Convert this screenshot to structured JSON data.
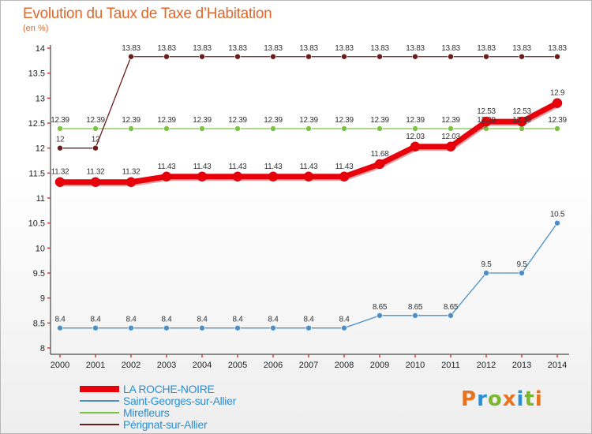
{
  "header": {
    "title": "Evolution du Taux de Taxe d’Habitation",
    "unit": "(en %)"
  },
  "logo": {
    "text": "Proxiti",
    "letter_colors": [
      "#e8731e",
      "#2b8fd4",
      "#7cb82f",
      "#e8731e",
      "#2b8fd4",
      "#7cb82f",
      "#e8731e"
    ]
  },
  "chart_data": {
    "type": "line",
    "x": [
      "2000",
      "2001",
      "2002",
      "2003",
      "2004",
      "2005",
      "2006",
      "2007",
      "2008",
      "2009",
      "2010",
      "2011",
      "2012",
      "2013",
      "2014"
    ],
    "ylim": [
      8,
      14
    ],
    "yticks": [
      "8",
      "8.5",
      "9",
      "9.5",
      "10",
      "10.5",
      "11",
      "11.5",
      "12",
      "12.5",
      "13",
      "13.5",
      "14"
    ],
    "grid": false,
    "legend_position": "bottom-left",
    "series": [
      {
        "name": "LA ROCHE-NOIRE",
        "color": "#e8000b",
        "values": [
          11.32,
          11.32,
          11.32,
          11.43,
          11.43,
          11.43,
          11.43,
          11.43,
          11.43,
          11.68,
          12.03,
          12.03,
          12.53,
          12.53,
          12.9
        ],
        "labels": [
          "11.32",
          "11.32",
          "11.32",
          "11.43",
          "11.43",
          "11.43",
          "11.43",
          "11.43",
          "11.43",
          "11.68",
          "12.03",
          "12.03",
          "12.53",
          "12.53",
          "12.9"
        ]
      },
      {
        "name": "Saint-Georges-sur-Allier",
        "color": "#4a8fc8",
        "values": [
          8.4,
          8.4,
          8.4,
          8.4,
          8.4,
          8.4,
          8.4,
          8.4,
          8.4,
          8.65,
          8.65,
          8.65,
          9.5,
          9.5,
          10.5
        ],
        "labels": [
          "8.4",
          "8.4",
          "8.4",
          "8.4",
          "8.4",
          "8.4",
          "8.4",
          "8.4",
          "8.4",
          "8.65",
          "8.65",
          "8.65",
          "9.5",
          "9.5",
          "10.5"
        ]
      },
      {
        "name": "Mirefleurs",
        "color": "#7cc242",
        "values": [
          12.39,
          12.39,
          12.39,
          12.39,
          12.39,
          12.39,
          12.39,
          12.39,
          12.39,
          12.39,
          12.39,
          12.39,
          12.39,
          12.39,
          12.39
        ],
        "labels": [
          "12.39",
          "12.39",
          "12.39",
          "12.39",
          "12.39",
          "12.39",
          "12.39",
          "12.39",
          "12.39",
          "12.39",
          "12.39",
          "12.39",
          "12.39",
          "12.39",
          "12.39"
        ]
      },
      {
        "name": "Pérignat-sur-Allier",
        "color": "#6b1c1c",
        "values": [
          12,
          12,
          13.83,
          13.83,
          13.83,
          13.83,
          13.83,
          13.83,
          13.83,
          13.83,
          13.83,
          13.83,
          13.83,
          13.83,
          13.83
        ],
        "labels": [
          "12",
          "12",
          "13.83",
          "13.83",
          "13.83",
          "13.83",
          "13.83",
          "13.83",
          "13.83",
          "13.83",
          "13.83",
          "13.83",
          "13.83",
          "13.83",
          "13.83"
        ]
      }
    ]
  }
}
